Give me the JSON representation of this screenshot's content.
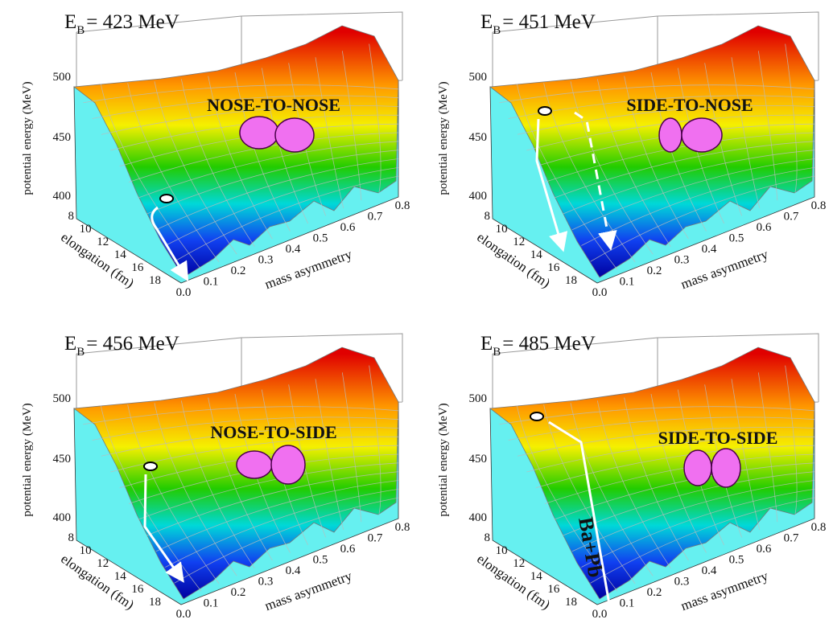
{
  "panels": [
    {
      "title": {
        "main": "E",
        "sub": "B",
        "rest": "= 423 MeV"
      },
      "label": "NOSE-TO-NOSE",
      "z_axis": {
        "label": "potential energy (MeV)",
        "ticks": [
          "500",
          "450",
          "400"
        ]
      },
      "x_axis": {
        "label": "elongation (fm)",
        "ticks": [
          "8",
          "10",
          "12",
          "14",
          "16",
          "18"
        ]
      },
      "y_axis": {
        "label": "mass asymmetry",
        "ticks": [
          "0.0",
          "0.1",
          "0.2",
          "0.3",
          "0.4",
          "0.5",
          "0.6",
          "0.7",
          "0.8"
        ]
      }
    },
    {
      "title": {
        "main": "E",
        "sub": "B",
        "rest": "= 451 MeV"
      },
      "label": "SIDE-TO-NOSE",
      "z_axis": {
        "label": "potential energy (MeV)",
        "ticks": [
          "500",
          "450",
          "400"
        ]
      },
      "x_axis": {
        "label": "elongation (fm)",
        "ticks": [
          "8",
          "10",
          "12",
          "14",
          "16",
          "18"
        ]
      },
      "y_axis": {
        "label": "mass asymmetry",
        "ticks": [
          "0.0",
          "0.1",
          "0.2",
          "0.3",
          "0.4",
          "0.5",
          "0.6",
          "0.7",
          "0.8"
        ]
      }
    },
    {
      "title": {
        "main": "E",
        "sub": "B",
        "rest": "= 456 MeV"
      },
      "label": "NOSE-TO-SIDE",
      "z_axis": {
        "label": "potential energy (MeV)",
        "ticks": [
          "500",
          "450",
          "400"
        ]
      },
      "x_axis": {
        "label": "elongation (fm)",
        "ticks": [
          "8",
          "10",
          "12",
          "14",
          "16",
          "18"
        ]
      },
      "y_axis": {
        "label": "mass asymmetry",
        "ticks": [
          "0.0",
          "0.1",
          "0.2",
          "0.3",
          "0.4",
          "0.5",
          "0.6",
          "0.7",
          "0.8"
        ]
      }
    },
    {
      "title": {
        "main": "E",
        "sub": "B",
        "rest": "= 485 MeV"
      },
      "label": "SIDE-TO-SIDE",
      "annotation": "Ba+Pb",
      "z_axis": {
        "label": "potential energy (MeV)",
        "ticks": [
          "500",
          "450",
          "400"
        ]
      },
      "x_axis": {
        "label": "elongation (fm)",
        "ticks": [
          "8",
          "10",
          "12",
          "14",
          "16",
          "18"
        ]
      },
      "y_axis": {
        "label": "mass asymmetry",
        "ticks": [
          "0.0",
          "0.1",
          "0.2",
          "0.3",
          "0.4",
          "0.5",
          "0.6",
          "0.7",
          "0.8"
        ]
      }
    }
  ]
}
